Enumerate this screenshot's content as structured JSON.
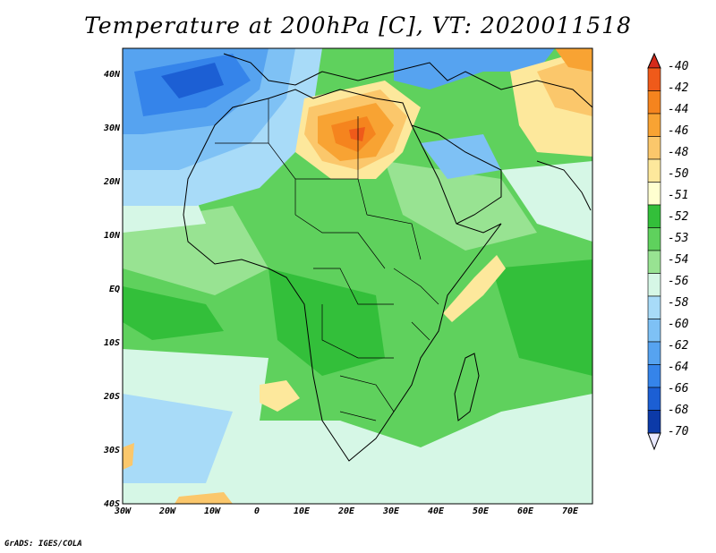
{
  "title": "Temperature at 200hPa [C], VT: 2020011518",
  "credit": "GrADS: IGES/COLA",
  "lat_labels": [
    "40N",
    "30N",
    "20N",
    "10N",
    "EQ",
    "10S",
    "20S",
    "30S",
    "40S"
  ],
  "lon_labels": [
    "30W",
    "20W",
    "10W",
    "0",
    "10E",
    "20E",
    "30E",
    "40E",
    "50E",
    "60E",
    "70E"
  ],
  "colorbar": {
    "labels": [
      "-40",
      "-42",
      "-44",
      "-46",
      "-48",
      "-50",
      "-51",
      "-52",
      "-53",
      "-54",
      "-56",
      "-58",
      "-60",
      "-62",
      "-64",
      "-66",
      "-68",
      "-70"
    ],
    "colors": [
      "#d42a1a",
      "#ef5a1a",
      "#f5841e",
      "#f8a333",
      "#fbc76b",
      "#fde89c",
      "#ffffd0",
      "#33bf3a",
      "#5fd15d",
      "#98e392",
      "#d6f7e6",
      "#a8dbf8",
      "#7ec1f5",
      "#56a3f0",
      "#3584ea",
      "#1c5fd4",
      "#0c3aa8",
      "#05166e"
    ]
  },
  "legend_meaning": "temperature in degrees C"
}
